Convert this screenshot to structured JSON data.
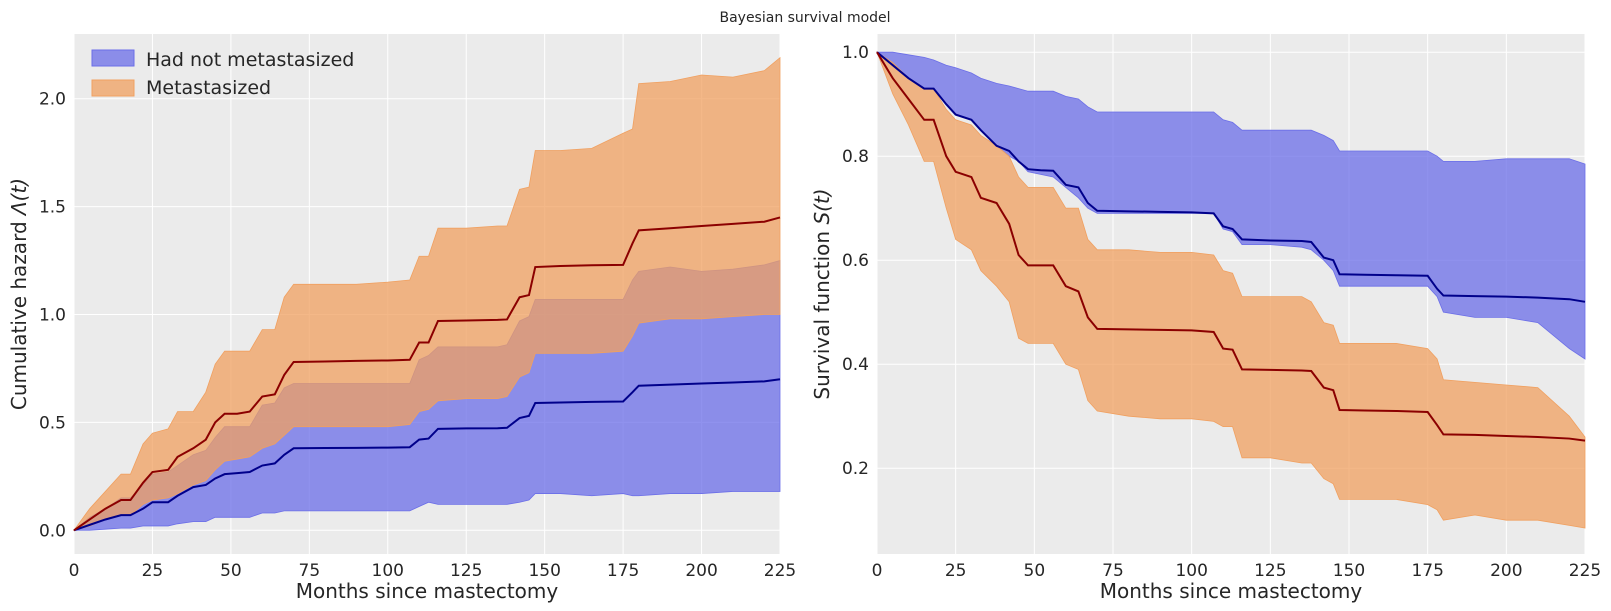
{
  "title": "Bayesian survival model",
  "colors": {
    "background": "#ebebeb",
    "not_metastasized_band": "#6b6ee8",
    "metastasized_band": "#f0a060",
    "not_metastasized_line": "#00008b",
    "metastasized_line": "#8b0000"
  },
  "chart_data": [
    {
      "type": "area",
      "ylabel_prefix": "Cumulative hazard ",
      "ylabel_math": "Λ(t)",
      "xlabel": "Months since mastectomy",
      "xlim": [
        0,
        225
      ],
      "ylim": [
        -0.11,
        2.3
      ],
      "xticks": [
        0,
        25,
        50,
        75,
        100,
        125,
        150,
        175,
        200,
        225
      ],
      "yticks": [
        0.0,
        0.5,
        1.0,
        1.5,
        2.0
      ],
      "ytick_labels": [
        "0.0",
        "0.5",
        "1.0",
        "1.5",
        "2.0"
      ],
      "legend": [
        "Had not metastasized",
        "Metastasized"
      ],
      "legend_position": "top-left",
      "series": [
        {
          "name": "Had not metastasized",
          "x": [
            0,
            5,
            10,
            15,
            18,
            22,
            25,
            30,
            33,
            38,
            42,
            45,
            48,
            52,
            56,
            60,
            64,
            67,
            70,
            80,
            90,
            100,
            107,
            110,
            113,
            116,
            125,
            135,
            138,
            142,
            145,
            147,
            155,
            165,
            175,
            178,
            180,
            190,
            200,
            210,
            220,
            225
          ],
          "lower": [
            0,
            0.0,
            0.005,
            0.01,
            0.01,
            0.02,
            0.02,
            0.02,
            0.03,
            0.04,
            0.04,
            0.06,
            0.06,
            0.06,
            0.06,
            0.08,
            0.08,
            0.09,
            0.09,
            0.09,
            0.09,
            0.09,
            0.09,
            0.11,
            0.13,
            0.12,
            0.12,
            0.12,
            0.12,
            0.13,
            0.14,
            0.17,
            0.17,
            0.16,
            0.17,
            0.16,
            0.16,
            0.17,
            0.17,
            0.18,
            0.18,
            0.18
          ],
          "mean": [
            0,
            0.025,
            0.05,
            0.07,
            0.07,
            0.1,
            0.13,
            0.13,
            0.16,
            0.2,
            0.21,
            0.24,
            0.26,
            0.265,
            0.27,
            0.3,
            0.31,
            0.35,
            0.38,
            0.381,
            0.382,
            0.383,
            0.385,
            0.42,
            0.425,
            0.47,
            0.472,
            0.473,
            0.475,
            0.52,
            0.53,
            0.59,
            0.592,
            0.595,
            0.597,
            0.64,
            0.67,
            0.675,
            0.68,
            0.685,
            0.69,
            0.7
          ],
          "upper": [
            0,
            0.06,
            0.1,
            0.15,
            0.15,
            0.21,
            0.26,
            0.27,
            0.3,
            0.35,
            0.37,
            0.43,
            0.48,
            0.48,
            0.48,
            0.58,
            0.59,
            0.66,
            0.68,
            0.68,
            0.68,
            0.68,
            0.68,
            0.79,
            0.81,
            0.85,
            0.85,
            0.85,
            0.86,
            0.97,
            0.99,
            1.07,
            1.07,
            1.07,
            1.07,
            1.16,
            1.2,
            1.22,
            1.2,
            1.21,
            1.23,
            1.25
          ]
        },
        {
          "name": "Metastasized",
          "x": [
            0,
            5,
            10,
            15,
            18,
            22,
            25,
            30,
            33,
            38,
            42,
            45,
            48,
            52,
            56,
            60,
            64,
            67,
            70,
            80,
            90,
            100,
            107,
            110,
            113,
            116,
            125,
            135,
            138,
            142,
            145,
            147,
            155,
            165,
            175,
            178,
            180,
            190,
            200,
            210,
            220,
            225
          ],
          "lower": [
            0,
            0.02,
            0.05,
            0.07,
            0.07,
            0.12,
            0.14,
            0.15,
            0.17,
            0.21,
            0.23,
            0.28,
            0.32,
            0.33,
            0.34,
            0.38,
            0.4,
            0.44,
            0.48,
            0.48,
            0.48,
            0.48,
            0.49,
            0.55,
            0.56,
            0.6,
            0.61,
            0.61,
            0.62,
            0.71,
            0.73,
            0.82,
            0.82,
            0.82,
            0.83,
            0.9,
            0.96,
            0.98,
            0.98,
            0.99,
            1.0,
            1.0
          ],
          "mean": [
            0,
            0.05,
            0.1,
            0.14,
            0.14,
            0.22,
            0.27,
            0.28,
            0.34,
            0.38,
            0.42,
            0.5,
            0.54,
            0.54,
            0.55,
            0.62,
            0.63,
            0.72,
            0.78,
            0.782,
            0.785,
            0.787,
            0.79,
            0.87,
            0.87,
            0.97,
            0.972,
            0.975,
            0.977,
            1.08,
            1.09,
            1.22,
            1.225,
            1.228,
            1.23,
            1.33,
            1.39,
            1.4,
            1.41,
            1.42,
            1.43,
            1.45
          ],
          "upper": [
            0,
            0.1,
            0.18,
            0.26,
            0.26,
            0.4,
            0.45,
            0.47,
            0.55,
            0.55,
            0.64,
            0.77,
            0.83,
            0.83,
            0.83,
            0.93,
            0.93,
            1.08,
            1.14,
            1.14,
            1.14,
            1.15,
            1.16,
            1.27,
            1.27,
            1.4,
            1.4,
            1.41,
            1.41,
            1.58,
            1.59,
            1.76,
            1.76,
            1.77,
            1.84,
            1.86,
            2.07,
            2.08,
            2.11,
            2.1,
            2.13,
            2.19
          ]
        }
      ]
    },
    {
      "type": "area",
      "ylabel_prefix": "Survival function ",
      "ylabel_math": "S(t)",
      "xlabel": "Months since mastectomy",
      "xlim": [
        0,
        225
      ],
      "ylim": [
        0.035,
        1.035
      ],
      "xticks": [
        0,
        25,
        50,
        75,
        100,
        125,
        150,
        175,
        200,
        225
      ],
      "yticks": [
        0.2,
        0.4,
        0.6,
        0.8,
        1.0
      ],
      "ytick_labels": [
        "0.2",
        "0.4",
        "0.6",
        "0.8",
        "1.0"
      ],
      "series": [
        {
          "name": "Had not metastasized",
          "x": [
            0,
            5,
            10,
            15,
            18,
            22,
            25,
            30,
            33,
            38,
            42,
            45,
            48,
            52,
            56,
            60,
            64,
            67,
            70,
            80,
            90,
            100,
            107,
            110,
            113,
            116,
            125,
            135,
            138,
            142,
            145,
            147,
            155,
            165,
            175,
            178,
            180,
            190,
            200,
            210,
            220,
            225
          ],
          "lower": [
            1.0,
            0.975,
            0.95,
            0.93,
            0.93,
            0.9,
            0.88,
            0.87,
            0.85,
            0.82,
            0.8,
            0.79,
            0.77,
            0.765,
            0.76,
            0.74,
            0.72,
            0.7,
            0.69,
            0.69,
            0.69,
            0.69,
            0.69,
            0.66,
            0.655,
            0.63,
            0.63,
            0.625,
            0.62,
            0.6,
            0.58,
            0.55,
            0.55,
            0.55,
            0.55,
            0.53,
            0.5,
            0.49,
            0.49,
            0.48,
            0.43,
            0.41
          ],
          "mean": [
            1.0,
            0.975,
            0.95,
            0.93,
            0.93,
            0.9,
            0.88,
            0.87,
            0.85,
            0.82,
            0.81,
            0.79,
            0.775,
            0.773,
            0.772,
            0.745,
            0.74,
            0.71,
            0.695,
            0.694,
            0.693,
            0.692,
            0.69,
            0.665,
            0.66,
            0.64,
            0.638,
            0.637,
            0.635,
            0.605,
            0.6,
            0.573,
            0.572,
            0.571,
            0.57,
            0.545,
            0.532,
            0.531,
            0.53,
            0.528,
            0.525,
            0.52
          ],
          "upper": [
            1.0,
            1.0,
            0.995,
            0.99,
            0.985,
            0.975,
            0.97,
            0.96,
            0.95,
            0.94,
            0.935,
            0.93,
            0.925,
            0.925,
            0.925,
            0.915,
            0.91,
            0.895,
            0.885,
            0.885,
            0.885,
            0.885,
            0.885,
            0.87,
            0.865,
            0.85,
            0.85,
            0.85,
            0.85,
            0.84,
            0.83,
            0.81,
            0.81,
            0.81,
            0.81,
            0.8,
            0.79,
            0.79,
            0.795,
            0.795,
            0.795,
            0.785
          ]
        },
        {
          "name": "Metastasized",
          "x": [
            0,
            5,
            10,
            15,
            18,
            22,
            25,
            30,
            33,
            38,
            42,
            45,
            48,
            52,
            56,
            60,
            64,
            67,
            70,
            80,
            90,
            100,
            107,
            110,
            113,
            116,
            125,
            135,
            138,
            142,
            145,
            147,
            155,
            165,
            175,
            178,
            180,
            190,
            200,
            210,
            220,
            225
          ],
          "lower": [
            1.0,
            0.92,
            0.86,
            0.79,
            0.79,
            0.7,
            0.64,
            0.62,
            0.58,
            0.55,
            0.52,
            0.45,
            0.44,
            0.44,
            0.44,
            0.4,
            0.39,
            0.33,
            0.31,
            0.3,
            0.295,
            0.295,
            0.29,
            0.28,
            0.28,
            0.22,
            0.22,
            0.21,
            0.21,
            0.18,
            0.17,
            0.14,
            0.14,
            0.14,
            0.13,
            0.12,
            0.1,
            0.11,
            0.1,
            0.1,
            0.09,
            0.085
          ],
          "mean": [
            1.0,
            0.95,
            0.91,
            0.87,
            0.87,
            0.8,
            0.77,
            0.76,
            0.72,
            0.71,
            0.67,
            0.61,
            0.59,
            0.59,
            0.59,
            0.55,
            0.54,
            0.49,
            0.468,
            0.467,
            0.466,
            0.465,
            0.462,
            0.43,
            0.428,
            0.39,
            0.389,
            0.388,
            0.387,
            0.355,
            0.35,
            0.312,
            0.311,
            0.31,
            0.308,
            0.283,
            0.265,
            0.264,
            0.262,
            0.26,
            0.257,
            0.253
          ],
          "upper": [
            1.0,
            0.98,
            0.95,
            0.93,
            0.93,
            0.89,
            0.87,
            0.86,
            0.84,
            0.82,
            0.8,
            0.76,
            0.74,
            0.74,
            0.74,
            0.7,
            0.7,
            0.64,
            0.62,
            0.62,
            0.615,
            0.615,
            0.61,
            0.58,
            0.575,
            0.53,
            0.53,
            0.53,
            0.52,
            0.48,
            0.475,
            0.44,
            0.44,
            0.44,
            0.43,
            0.41,
            0.37,
            0.365,
            0.36,
            0.355,
            0.3,
            0.26
          ]
        }
      ]
    }
  ]
}
